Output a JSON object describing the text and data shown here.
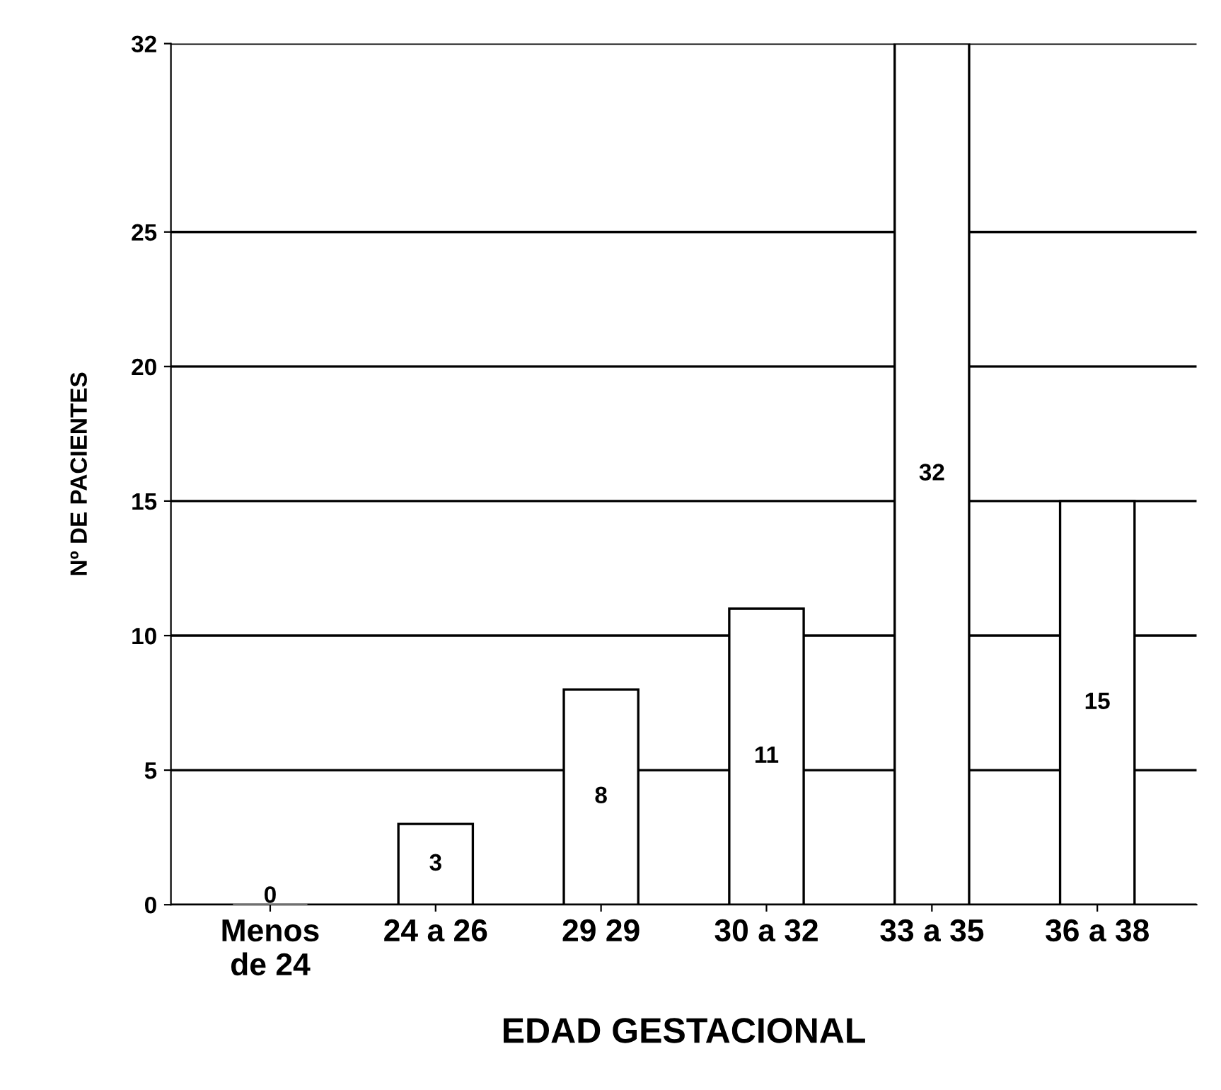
{
  "chart_data": {
    "type": "bar",
    "categories": [
      "Menos\nde 24",
      "24 a 26",
      "29 29",
      "30 a 32",
      "33 a 35",
      "36 a 38"
    ],
    "values": [
      0,
      3,
      8,
      11,
      32,
      15
    ],
    "colors": [
      "#a0a0a0",
      "#ffffff",
      "#ffffff",
      "#ffffff",
      "#ffffff",
      "#ffffff"
    ],
    "xlabel": "EDAD GESTACIONAL",
    "ylabel": "Nº DE PACIENTES",
    "ylim": [
      0,
      32
    ],
    "yticks": [
      0,
      5,
      10,
      15,
      20,
      25,
      32
    ],
    "grid": "y",
    "data_labels": true
  }
}
